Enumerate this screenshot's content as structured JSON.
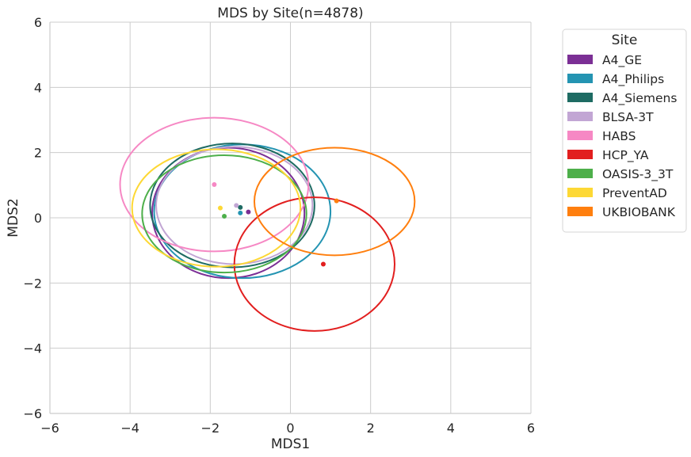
{
  "chart_data": {
    "type": "scatter",
    "title": "MDS by Site(n=4878)",
    "xlabel": "MDS1",
    "ylabel": "MDS2",
    "xlim": [
      -6,
      6
    ],
    "ylim": [
      -6,
      6
    ],
    "xticks": [
      -6,
      -4,
      -2,
      0,
      2,
      4,
      6
    ],
    "yticks": [
      -6,
      -4,
      -2,
      0,
      2,
      4,
      6
    ],
    "xtick_labels": [
      "−6",
      "−4",
      "−2",
      "0",
      "2",
      "4",
      "6"
    ],
    "ytick_labels": [
      "−6",
      "−4",
      "−2",
      "0",
      "2",
      "4",
      "6"
    ],
    "grid": true,
    "legend": {
      "title": "Site",
      "placement": "outside-right"
    },
    "series": [
      {
        "name": "A4_GE",
        "color": "#7b2f95",
        "centroid": [
          -1.05,
          0.18
        ],
        "ellipse": {
          "cx": -1.55,
          "cy": 0.15,
          "rx": 1.9,
          "ry": 2.0
        }
      },
      {
        "name": "A4_Philips",
        "color": "#2494b2",
        "centroid": [
          -1.25,
          0.15
        ],
        "ellipse": {
          "cx": -1.2,
          "cy": 0.2,
          "rx": 2.2,
          "ry": 2.05
        }
      },
      {
        "name": "A4_Siemens",
        "color": "#1e6b63",
        "centroid": [
          -1.25,
          0.32
        ],
        "ellipse": {
          "cx": -1.45,
          "cy": 0.38,
          "rx": 2.05,
          "ry": 1.9
        }
      },
      {
        "name": "BLSA-3T",
        "color": "#c2a6d4",
        "centroid": [
          -1.35,
          0.38
        ],
        "ellipse": {
          "cx": -1.4,
          "cy": 0.38,
          "rx": 1.95,
          "ry": 1.8
        }
      },
      {
        "name": "HABS",
        "color": "#f688c4",
        "centroid": [
          -1.9,
          1.02
        ],
        "ellipse": {
          "cx": -1.9,
          "cy": 1.02,
          "rx": 2.35,
          "ry": 2.05
        }
      },
      {
        "name": "HCP_YA",
        "color": "#e21f1f",
        "centroid": [
          0.82,
          -1.42
        ],
        "ellipse": {
          "cx": 0.6,
          "cy": -1.42,
          "rx": 2.0,
          "ry": 2.05
        }
      },
      {
        "name": "OASIS-3_3T",
        "color": "#4daf4a",
        "centroid": [
          -1.65,
          0.05
        ],
        "ellipse": {
          "cx": -1.65,
          "cy": 0.12,
          "rx": 2.05,
          "ry": 1.8
        }
      },
      {
        "name": "PreventAD",
        "color": "#fdd835",
        "centroid": [
          -1.75,
          0.3
        ],
        "ellipse": {
          "cx": -1.85,
          "cy": 0.3,
          "rx": 2.1,
          "ry": 1.8
        }
      },
      {
        "name": "UKBIOBANK",
        "color": "#ff7f0e",
        "centroid": [
          1.15,
          0.52
        ],
        "ellipse": {
          "cx": 1.1,
          "cy": 0.5,
          "rx": 2.0,
          "ry": 1.65
        }
      }
    ]
  }
}
